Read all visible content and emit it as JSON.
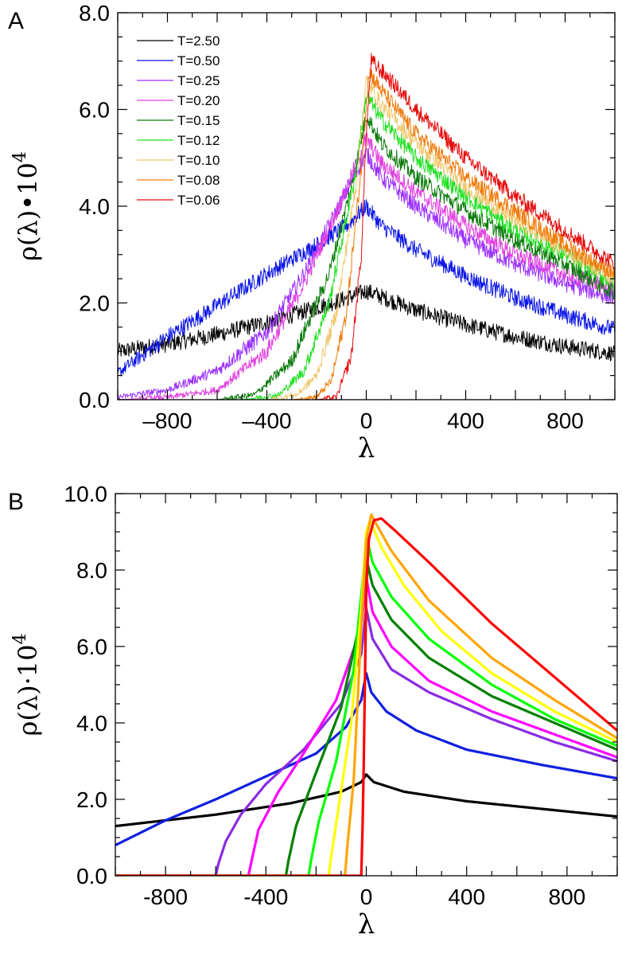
{
  "chart_data": [
    {
      "panel": "A",
      "type": "line",
      "ylabel": "ρ(λ)•10",
      "ylabel_exp": "4",
      "xlabel": "λ",
      "xlim": [
        -1000,
        1000
      ],
      "ylim": [
        0,
        8
      ],
      "xticks": [
        -800,
        -400,
        0,
        400,
        800
      ],
      "xtick_labels": [
        "–800",
        "–400",
        "0",
        "400",
        "800"
      ],
      "yticks": [
        0,
        2,
        4,
        6,
        8
      ],
      "ytick_labels": [
        "0.0",
        "2.0",
        "4.0",
        "6.0",
        "8.0"
      ],
      "legend_position": "top-left",
      "noisy": true,
      "series": [
        {
          "name": "T=2.50",
          "color": "#000000",
          "x": [
            -1000,
            -800,
            -600,
            -400,
            -200,
            -50,
            0,
            50,
            200,
            400,
            600,
            800,
            1000
          ],
          "values": [
            1.0,
            1.15,
            1.35,
            1.6,
            1.9,
            2.15,
            2.25,
            2.15,
            1.85,
            1.55,
            1.3,
            1.1,
            0.95
          ]
        },
        {
          "name": "T=0.50",
          "color": "#0a14e6",
          "x": [
            -1000,
            -800,
            -600,
            -400,
            -200,
            -80,
            0,
            60,
            200,
            400,
            600,
            800,
            1000
          ],
          "values": [
            0.55,
            1.3,
            1.95,
            2.6,
            3.2,
            3.6,
            4.0,
            3.6,
            3.1,
            2.55,
            2.1,
            1.75,
            1.45
          ]
        },
        {
          "name": "T=0.25",
          "color": "#9b30ff",
          "x": [
            -1000,
            -800,
            -600,
            -400,
            -250,
            -100,
            0,
            60,
            200,
            400,
            600,
            800,
            1000
          ],
          "values": [
            0.05,
            0.2,
            0.6,
            1.4,
            2.6,
            4.1,
            5.1,
            4.6,
            4.0,
            3.3,
            2.8,
            2.4,
            2.1
          ]
        },
        {
          "name": "T=0.20",
          "color": "#e040e0",
          "x": [
            -1000,
            -800,
            -600,
            -400,
            -250,
            -100,
            0,
            60,
            200,
            400,
            600,
            800,
            1000
          ],
          "values": [
            0.0,
            0.05,
            0.2,
            1.0,
            2.4,
            4.1,
            5.4,
            4.9,
            4.3,
            3.6,
            3.0,
            2.6,
            2.3
          ]
        },
        {
          "name": "T=0.15",
          "color": "#0a7a0a",
          "x": [
            -1000,
            -600,
            -450,
            -300,
            -150,
            -50,
            0,
            60,
            200,
            400,
            600,
            800,
            1000
          ],
          "values": [
            0.0,
            0.0,
            0.1,
            0.8,
            2.6,
            4.6,
            5.9,
            5.3,
            4.6,
            3.9,
            3.3,
            2.8,
            2.2
          ]
        },
        {
          "name": "T=0.12",
          "color": "#1ee01e",
          "x": [
            -1000,
            -500,
            -350,
            -250,
            -150,
            -50,
            0,
            60,
            200,
            400,
            600,
            800,
            1000
          ],
          "values": [
            0.0,
            0.0,
            0.1,
            0.6,
            2.0,
            4.5,
            6.3,
            5.8,
            5.0,
            4.2,
            3.5,
            3.0,
            2.4
          ]
        },
        {
          "name": "T=0.10",
          "color": "#f0c870",
          "x": [
            -1000,
            -400,
            -280,
            -200,
            -120,
            -40,
            0,
            60,
            200,
            400,
            600,
            800,
            1000
          ],
          "values": [
            0.0,
            0.0,
            0.1,
            0.5,
            1.8,
            4.5,
            6.6,
            6.1,
            5.3,
            4.4,
            3.7,
            3.1,
            2.5
          ]
        },
        {
          "name": "T=0.08",
          "color": "#f07a0a",
          "x": [
            -1000,
            -300,
            -200,
            -140,
            -80,
            -20,
            10,
            60,
            200,
            400,
            600,
            800,
            1000
          ],
          "values": [
            0.0,
            0.0,
            0.05,
            0.4,
            1.8,
            4.8,
            6.8,
            6.4,
            5.5,
            4.6,
            3.9,
            3.2,
            2.6
          ]
        },
        {
          "name": "T=0.06",
          "color": "#e60a0a",
          "x": [
            -1000,
            -200,
            -120,
            -60,
            -20,
            0,
            20,
            80,
            200,
            400,
            600,
            800,
            1000
          ],
          "values": [
            0.0,
            0.0,
            0.05,
            0.9,
            3.0,
            5.5,
            7.0,
            6.7,
            6.0,
            5.0,
            4.2,
            3.5,
            2.8
          ]
        }
      ]
    },
    {
      "panel": "B",
      "type": "line",
      "ylabel": "ρ(λ)·10",
      "ylabel_exp": "4",
      "xlabel": "λ",
      "xlim": [
        -1000,
        1000
      ],
      "ylim": [
        0,
        10
      ],
      "xticks": [
        -800,
        -400,
        0,
        400,
        800
      ],
      "xtick_labels": [
        "-800",
        "-400",
        "0",
        "400",
        "800"
      ],
      "yticks": [
        0,
        2,
        4,
        6,
        8,
        10
      ],
      "ytick_labels": [
        "0.0",
        "2.0",
        "4.0",
        "6.0",
        "8.0",
        "10.0"
      ],
      "noisy": false,
      "series": [
        {
          "name": "black",
          "color": "#000000",
          "x": [
            -1000,
            -600,
            -300,
            -100,
            -20,
            0,
            30,
            150,
            400,
            700,
            1000
          ],
          "values": [
            1.3,
            1.6,
            1.9,
            2.2,
            2.45,
            2.65,
            2.45,
            2.2,
            1.95,
            1.75,
            1.55
          ]
        },
        {
          "name": "blue",
          "color": "#1020e0",
          "x": [
            -1000,
            -800,
            -600,
            -400,
            -200,
            -80,
            -20,
            0,
            20,
            80,
            200,
            400,
            700,
            1000
          ],
          "values": [
            0.8,
            1.45,
            2.0,
            2.6,
            3.2,
            3.9,
            4.6,
            5.3,
            4.8,
            4.3,
            3.8,
            3.3,
            2.9,
            2.55
          ]
        },
        {
          "name": "purple",
          "color": "#8a2be2",
          "x": [
            -1000,
            -600,
            -590,
            -560,
            -500,
            -400,
            -250,
            -100,
            -20,
            0,
            25,
            100,
            250,
            500,
            750,
            1000
          ],
          "values": [
            0,
            0,
            0.3,
            0.9,
            1.6,
            2.4,
            3.3,
            4.5,
            5.8,
            7.0,
            6.2,
            5.4,
            4.8,
            4.1,
            3.5,
            3.0
          ]
        },
        {
          "name": "magenta",
          "color": "#ff00ff",
          "x": [
            -1000,
            -470,
            -460,
            -430,
            -350,
            -250,
            -120,
            -20,
            0,
            25,
            100,
            250,
            500,
            750,
            1000
          ],
          "values": [
            0,
            0,
            0.3,
            1.2,
            2.2,
            3.2,
            4.6,
            6.5,
            7.8,
            6.9,
            6.0,
            5.1,
            4.3,
            3.7,
            3.1
          ]
        },
        {
          "name": "dark-green",
          "color": "#008000",
          "x": [
            -1000,
            -320,
            -310,
            -280,
            -200,
            -100,
            -20,
            0,
            25,
            100,
            250,
            500,
            750,
            1000
          ],
          "values": [
            0,
            0,
            0.4,
            1.3,
            2.7,
            4.4,
            6.8,
            8.3,
            7.6,
            6.7,
            5.7,
            4.7,
            4.0,
            3.3
          ]
        },
        {
          "name": "green",
          "color": "#00ff00",
          "x": [
            -1000,
            -230,
            -220,
            -190,
            -120,
            -50,
            -10,
            0,
            25,
            100,
            250,
            500,
            750,
            1000
          ],
          "values": [
            0,
            0,
            0.4,
            1.4,
            3.0,
            5.4,
            8.0,
            8.9,
            8.2,
            7.3,
            6.2,
            5.0,
            4.1,
            3.4
          ]
        },
        {
          "name": "yellow",
          "color": "#ffff00",
          "x": [
            -1000,
            -150,
            -140,
            -110,
            -60,
            -20,
            0,
            15,
            60,
            150,
            300,
            500,
            750,
            1000
          ],
          "values": [
            0,
            0,
            0.5,
            1.8,
            4.0,
            7.0,
            9.0,
            9.3,
            8.6,
            7.6,
            6.4,
            5.3,
            4.3,
            3.5
          ]
        },
        {
          "name": "orange",
          "color": "#ffa500",
          "x": [
            -1000,
            -85,
            -75,
            -50,
            -20,
            0,
            20,
            40,
            100,
            250,
            500,
            750,
            1000
          ],
          "values": [
            0,
            0,
            0.8,
            2.5,
            6.5,
            8.8,
            9.45,
            9.2,
            8.5,
            7.2,
            5.7,
            4.6,
            3.6
          ]
        },
        {
          "name": "red",
          "color": "#ff0000",
          "x": [
            -1000,
            -20,
            -12,
            0,
            10,
            30,
            60,
            120,
            250,
            500,
            750,
            1000
          ],
          "values": [
            0,
            0,
            2.0,
            7.5,
            8.8,
            9.3,
            9.35,
            9.0,
            8.2,
            6.6,
            5.2,
            3.8
          ]
        }
      ]
    }
  ],
  "panel_labels": [
    "A",
    "B"
  ]
}
